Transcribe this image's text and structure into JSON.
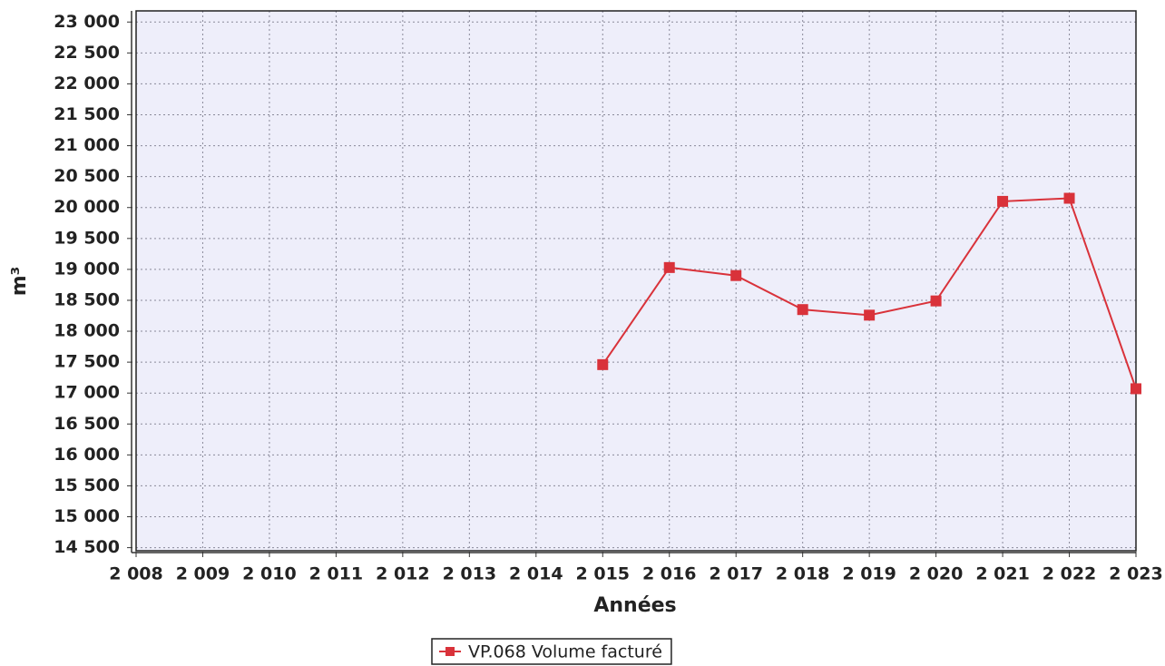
{
  "chart_data": {
    "type": "line",
    "x_label": "Années",
    "y_label": "m³",
    "x": [
      2015,
      2016,
      2017,
      2018,
      2019,
      2020,
      2021,
      2022,
      2023
    ],
    "series": [
      {
        "name": "VP.068 Volume facturé",
        "color": "#d9323a",
        "values": [
          17460,
          19030,
          18900,
          18350,
          18260,
          18490,
          20100,
          20150,
          17070
        ]
      }
    ],
    "xlim": [
      2008,
      2023
    ],
    "xticks": [
      {
        "value": 2008,
        "label": "2 008"
      },
      {
        "value": 2009,
        "label": "2 009"
      },
      {
        "value": 2010,
        "label": "2 010"
      },
      {
        "value": 2011,
        "label": "2 011"
      },
      {
        "value": 2012,
        "label": "2 012"
      },
      {
        "value": 2013,
        "label": "2 013"
      },
      {
        "value": 2014,
        "label": "2 014"
      },
      {
        "value": 2015,
        "label": "2 015"
      },
      {
        "value": 2016,
        "label": "2 016"
      },
      {
        "value": 2017,
        "label": "2 017"
      },
      {
        "value": 2018,
        "label": "2 018"
      },
      {
        "value": 2019,
        "label": "2 019"
      },
      {
        "value": 2020,
        "label": "2 020"
      },
      {
        "value": 2021,
        "label": "2 021"
      },
      {
        "value": 2022,
        "label": "2 022"
      },
      {
        "value": 2023,
        "label": "2 023"
      }
    ],
    "ylim": [
      14450,
      23180
    ],
    "yticks": [
      {
        "value": 14500,
        "label": "14 500"
      },
      {
        "value": 15000,
        "label": "15 000"
      },
      {
        "value": 15500,
        "label": "15 500"
      },
      {
        "value": 16000,
        "label": "16 000"
      },
      {
        "value": 16500,
        "label": "16 500"
      },
      {
        "value": 17000,
        "label": "17 000"
      },
      {
        "value": 17500,
        "label": "17 500"
      },
      {
        "value": 18000,
        "label": "18 000"
      },
      {
        "value": 18500,
        "label": "18 500"
      },
      {
        "value": 19000,
        "label": "19 000"
      },
      {
        "value": 19500,
        "label": "19 500"
      },
      {
        "value": 20000,
        "label": "20 000"
      },
      {
        "value": 20500,
        "label": "20 500"
      },
      {
        "value": 21000,
        "label": "21 000"
      },
      {
        "value": 21500,
        "label": "21 500"
      },
      {
        "value": 22000,
        "label": "22 000"
      },
      {
        "value": 22500,
        "label": "22 500"
      },
      {
        "value": 23000,
        "label": "23 000"
      }
    ],
    "grid": true,
    "background": "#eeeefa"
  }
}
